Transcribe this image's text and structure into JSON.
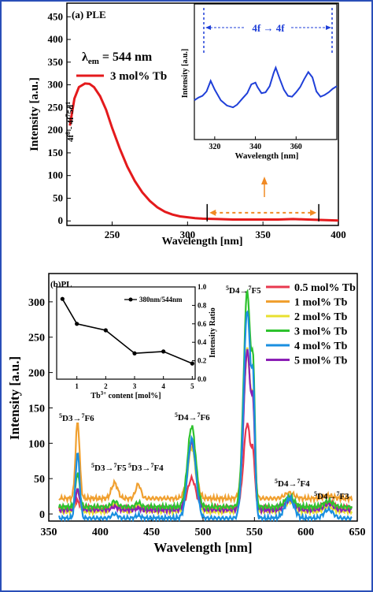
{
  "chart_data": [
    {
      "type": "line",
      "panel_label": "(a) PLE",
      "xlabel": "Wavelength [nm]",
      "ylabel": "Intensity [a.u.]",
      "xlim": [
        220,
        400
      ],
      "ylim": [
        -10,
        480
      ],
      "xticks": [
        250,
        300,
        350,
        400
      ],
      "yticks": [
        0,
        50,
        100,
        150,
        200,
        250,
        300,
        350,
        400,
        450
      ],
      "lambda_text": "λem = 544 nm",
      "legend_text": "3 mol% Tb",
      "annotation": "4f8 - 4f75d1",
      "series": [
        {
          "name": "3 mol% Tb",
          "color": "#e41a1c",
          "x": [
            222,
            225,
            228,
            232,
            235,
            238,
            242,
            246,
            250,
            255,
            260,
            265,
            270,
            275,
            280,
            285,
            290,
            295,
            300,
            305,
            310,
            320,
            330,
            340,
            350,
            360,
            370,
            380,
            390,
            400
          ],
          "y": [
            210,
            270,
            295,
            303,
            302,
            295,
            275,
            245,
            205,
            160,
            120,
            88,
            63,
            44,
            30,
            20,
            14,
            10,
            8,
            6,
            5,
            4,
            3,
            3,
            3,
            3,
            4,
            3,
            2,
            1
          ]
        }
      ],
      "range_marker": {
        "x": [
          313,
          387
        ],
        "y": 18
      },
      "inset": {
        "type": "line",
        "xlabel": "Wavelength [nm]",
        "ylabel": "Intensity [a.u.]",
        "xlim": [
          310,
          380
        ],
        "ylim": [
          0,
          10
        ],
        "xticks": [
          320,
          340,
          360
        ],
        "title": "4f → 4f",
        "series": [
          {
            "name": "3 mol% Tb",
            "color": "#1f3fd8",
            "x": [
              310,
              312,
              314,
              316,
              318,
              320,
              323,
              326,
              329,
              331,
              334,
              336,
              338,
              340,
              341,
              343,
              345,
              347,
              349,
              350,
              352,
              354,
              356,
              358,
              360,
              362,
              364,
              366,
              368,
              370,
              372,
              374,
              376,
              378,
              380
            ],
            "y": [
              4.0,
              4.3,
              4.5,
              5.0,
              6.2,
              5.2,
              4.0,
              3.4,
              3.2,
              3.5,
              4.3,
              4.8,
              5.8,
              6.0,
              5.5,
              4.8,
              4.9,
              5.6,
              7.1,
              7.7,
              6.4,
              5.2,
              4.5,
              4.4,
              4.9,
              5.5,
              6.4,
              7.2,
              6.6,
              5.0,
              4.4,
              4.6,
              4.9,
              5.3,
              5.6
            ]
          }
        ]
      }
    },
    {
      "type": "line",
      "panel_label": "(b)PL",
      "xlabel": "Wavelength [nm]",
      "ylabel": "Intensity [a.u.]",
      "xlim": [
        350,
        650
      ],
      "ylim": [
        -10,
        340
      ],
      "xticks": [
        350,
        400,
        450,
        500,
        550,
        600,
        650
      ],
      "yticks": [
        0,
        50,
        100,
        150,
        200,
        250,
        300
      ],
      "transition_labels": [
        {
          "sup": "5",
          "main": "D3→",
          "sup2": "7",
          "main2": "F6"
        },
        {
          "sup": "5",
          "main": "D3→",
          "sup2": "7",
          "main2": "F5"
        },
        {
          "sup": "5",
          "main": "D3→",
          "sup2": "7",
          "main2": "F4"
        },
        {
          "sup": "5",
          "main": "D4→",
          "sup2": "7",
          "main2": "F6"
        },
        {
          "sup": "5",
          "main": "D4→",
          "sup2": "7",
          "main2": "F5"
        },
        {
          "sup": "5",
          "main": "D4→",
          "sup2": "7",
          "main2": "F4"
        },
        {
          "sup": "5",
          "main": "D4→",
          "sup2": "7",
          "main2": "F3"
        }
      ],
      "series": [
        {
          "name": "0.5 mol% Tb",
          "color": "#e8384f",
          "base": 8,
          "peaks": {
            "378": 10,
            "414": 4,
            "437": 2,
            "489": 42,
            "543": 120,
            "584": 12,
            "622": 8
          }
        },
        {
          "name": "1 mol% Tb",
          "color": "#f0a030",
          "base": 22,
          "peaks": {
            "378": 108,
            "414": 22,
            "437": 20,
            "489": 78,
            "543": 208,
            "584": 8,
            "622": 4
          }
        },
        {
          "name": "2 mol% Tb",
          "color": "#e8e030",
          "base": 4,
          "peaks": {
            "378": 30,
            "414": 12,
            "437": 10,
            "489": 90,
            "543": 230,
            "584": 14,
            "622": 6
          }
        },
        {
          "name": "3 mol% Tb",
          "color": "#2ec22e",
          "base": 10,
          "peaks": {
            "378": 48,
            "414": 8,
            "437": 6,
            "489": 114,
            "543": 306,
            "584": 14,
            "622": 8
          }
        },
        {
          "name": "4 mol% Tb",
          "color": "#1a8fe0",
          "base": -6,
          "peaks": {
            "378": 92,
            "414": 6,
            "437": 4,
            "489": 112,
            "543": 295,
            "584": 28,
            "622": 12
          }
        },
        {
          "name": "5 mol% Tb",
          "color": "#8b1fb5",
          "base": 6,
          "peaks": {
            "378": 28,
            "414": 4,
            "437": 2,
            "489": 96,
            "543": 226,
            "584": 14,
            "622": 8
          }
        }
      ],
      "inset": {
        "type": "line",
        "legend_text": "380nm/544nm",
        "xlabel": "Tb3+ content [mol%]",
        "ylabel": "Intensity Ratio",
        "xlim": [
          0.3,
          5.1
        ],
        "ylim": [
          0,
          1.0
        ],
        "xticks": [
          1,
          2,
          3,
          4,
          5
        ],
        "yticks": [
          0.0,
          0.2,
          0.4,
          0.6,
          0.8,
          1.0
        ],
        "series": [
          {
            "name": "380nm/544nm",
            "color": "#000000",
            "x": [
              0.5,
              1,
              2,
              3,
              4,
              5
            ],
            "y": [
              0.87,
              0.6,
              0.53,
              0.28,
              0.3,
              0.17
            ]
          }
        ]
      }
    }
  ]
}
